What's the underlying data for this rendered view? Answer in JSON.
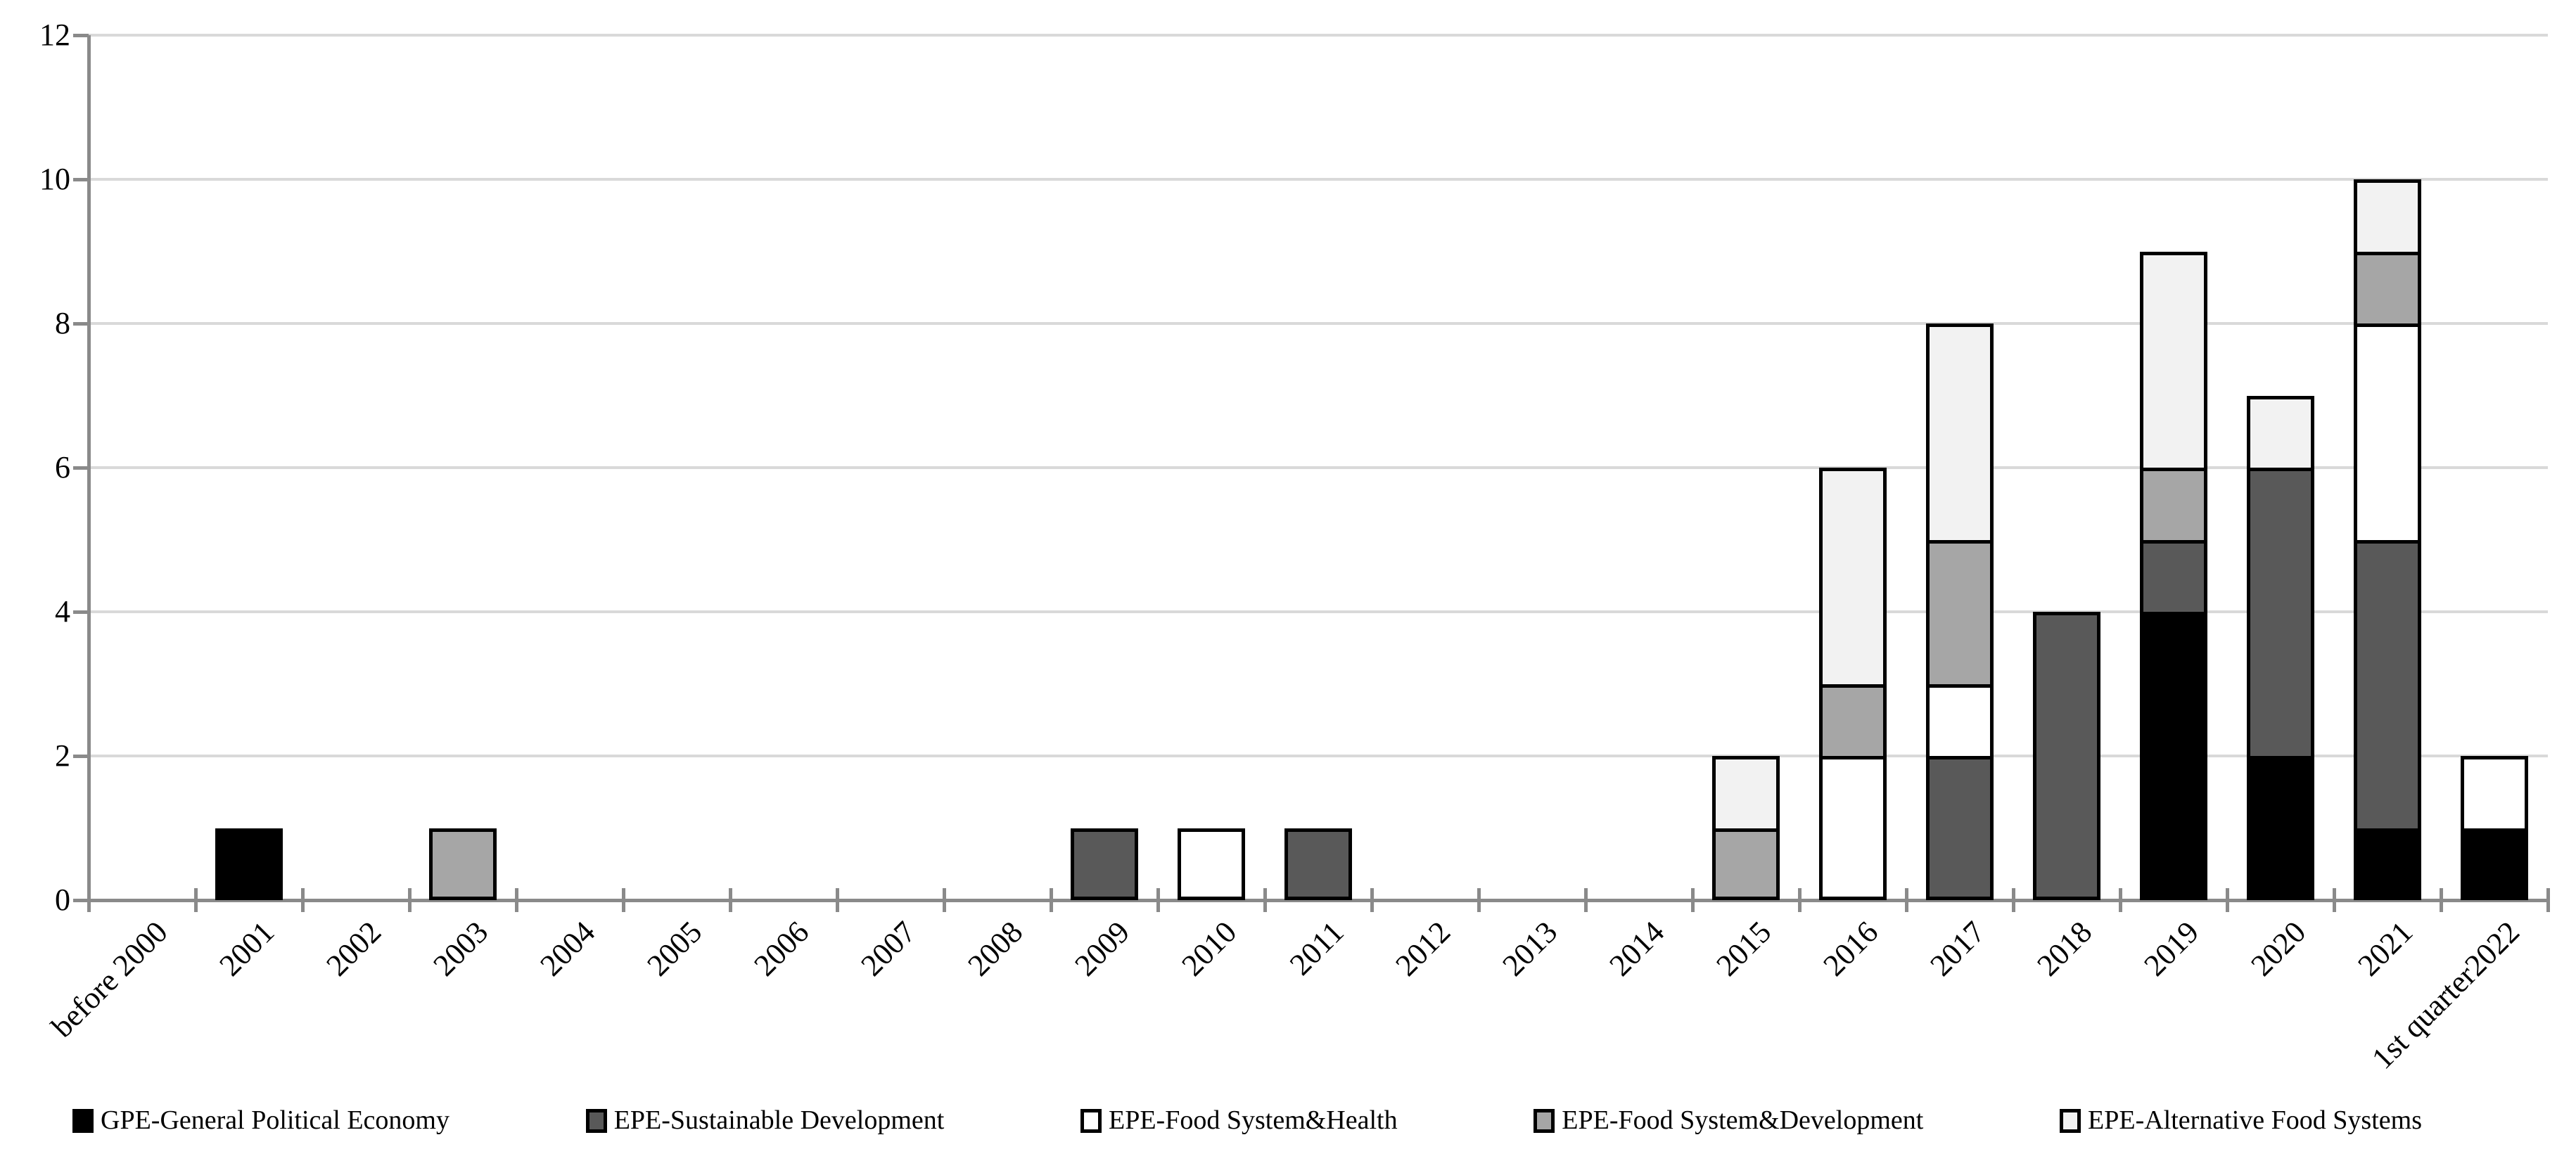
{
  "chart_data": {
    "type": "bar",
    "stacked": true,
    "title": "",
    "xlabel": "",
    "ylabel": "",
    "categories": [
      "before 2000",
      "2001",
      "2002",
      "2003",
      "2004",
      "2005",
      "2006",
      "2007",
      "2008",
      "2009",
      "2010",
      "2011",
      "2012",
      "2013",
      "2014",
      "2015",
      "2016",
      "2017",
      "2018",
      "2019",
      "2020",
      "2021",
      "1st quarter2022"
    ],
    "series": [
      {
        "name": "GPE-General Political Economy",
        "color": "#000000",
        "values": [
          0,
          1,
          0,
          0,
          0,
          0,
          0,
          0,
          0,
          0,
          0,
          0,
          0,
          0,
          0,
          0,
          0,
          0,
          0,
          4,
          2,
          1,
          1
        ]
      },
      {
        "name": "EPE-Sustainable Development",
        "color": "#595959",
        "values": [
          0,
          0,
          0,
          0,
          0,
          0,
          0,
          0,
          0,
          1,
          0,
          1,
          0,
          0,
          0,
          0,
          0,
          2,
          4,
          1,
          4,
          4,
          0
        ]
      },
      {
        "name": "EPE-Food System&Health",
        "color": "#ffffff",
        "values": [
          0,
          0,
          0,
          0,
          0,
          0,
          0,
          0,
          0,
          0,
          1,
          0,
          0,
          0,
          0,
          0,
          2,
          1,
          0,
          0,
          0,
          3,
          1
        ]
      },
      {
        "name": "EPE-Food System&Development",
        "color": "#a6a6a6",
        "values": [
          0,
          0,
          0,
          1,
          0,
          0,
          0,
          0,
          0,
          0,
          0,
          0,
          0,
          0,
          0,
          1,
          1,
          2,
          0,
          1,
          0,
          1,
          0
        ]
      },
      {
        "name": "EPE-Alternative Food Systems",
        "color": "#f2f2f2",
        "values": [
          0,
          0,
          0,
          0,
          0,
          0,
          0,
          0,
          0,
          0,
          0,
          0,
          0,
          0,
          0,
          1,
          3,
          3,
          0,
          3,
          1,
          1,
          0
        ]
      }
    ],
    "y_axis": {
      "min": 0,
      "max": 12,
      "step": 2,
      "tick_labels": [
        "0",
        "2",
        "4",
        "6",
        "8",
        "10",
        "12"
      ]
    },
    "grid": true,
    "legend_position": "bottom",
    "colors": {
      "gridline": "#d9d9d9",
      "axis": "#8a8a8a",
      "bar_border": "#000000",
      "background": "#ffffff",
      "text": "#000000"
    }
  }
}
